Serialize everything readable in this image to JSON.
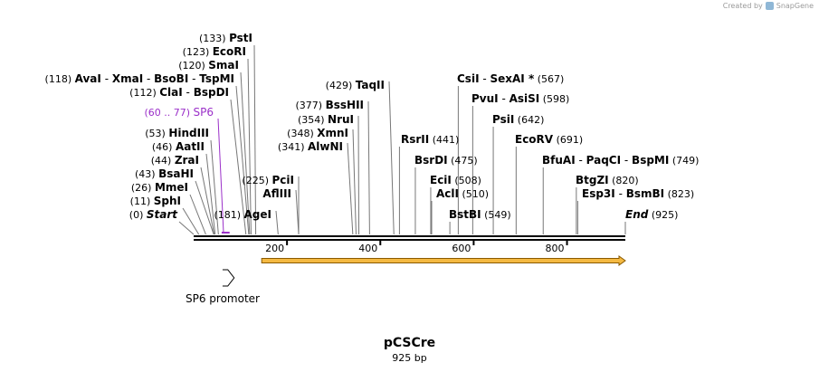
{
  "credit": {
    "text": "Created by",
    "brand": "SnapGene"
  },
  "plasmid": {
    "name": "pCSCre",
    "length": "925 bp"
  },
  "axis": {
    "start": 0,
    "end": 925,
    "ticks": [
      "200",
      "400",
      "600",
      "800"
    ]
  },
  "colors": {
    "primer": "#9b30c9",
    "feature_fill": "#f4b942",
    "feature_stroke": "#8a5a00",
    "line": "#000000"
  },
  "primer": {
    "pos": "(60 .. 77)",
    "name": "SP6",
    "start": 60,
    "end": 77
  },
  "features": [
    {
      "name": "SP6 promoter",
      "start": 60,
      "end": 79,
      "type": "promoter"
    },
    {
      "name": "",
      "start": 140,
      "end": 925,
      "type": "arrow"
    }
  ],
  "left_sites": [
    {
      "pos": "(133)",
      "names": [
        "PstI"
      ],
      "loc": 133
    },
    {
      "pos": "(123)",
      "names": [
        "EcoRI"
      ],
      "loc": 123
    },
    {
      "pos": "(120)",
      "names": [
        "SmaI"
      ],
      "loc": 120
    },
    {
      "pos": "(118)",
      "names": [
        "AvaI",
        "XmaI",
        "BsoBI",
        "TspMI"
      ],
      "loc": 118
    },
    {
      "pos": "(112)",
      "names": [
        "ClaI",
        "BspDI"
      ],
      "loc": 112
    },
    {
      "pos": "(53)",
      "names": [
        "HindIII"
      ],
      "loc": 53
    },
    {
      "pos": "(46)",
      "names": [
        "AatII"
      ],
      "loc": 46
    },
    {
      "pos": "(44)",
      "names": [
        "ZraI"
      ],
      "loc": 44
    },
    {
      "pos": "(43)",
      "names": [
        "BsaHI"
      ],
      "loc": 43
    },
    {
      "pos": "(26)",
      "names": [
        "MmeI"
      ],
      "loc": 26
    },
    {
      "pos": "(11)",
      "names": [
        "SphI"
      ],
      "loc": 11
    },
    {
      "pos": "(0)",
      "names": [
        "Start"
      ],
      "loc": 0
    }
  ],
  "mid_sites": [
    {
      "pos": "(429)",
      "names": [
        "TaqII"
      ],
      "loc": 429
    },
    {
      "pos": "(377)",
      "names": [
        "BssHII"
      ],
      "loc": 377
    },
    {
      "pos": "(354)",
      "names": [
        "NruI"
      ],
      "loc": 354
    },
    {
      "pos": "(348)",
      "names": [
        "XmnI"
      ],
      "loc": 348
    },
    {
      "pos": "(341)",
      "names": [
        "AlwNI"
      ],
      "loc": 341
    },
    {
      "pos": "(225)",
      "names": [
        "PciI"
      ],
      "loc": 225
    },
    {
      "pos": "",
      "names": [
        "AflIII"
      ],
      "loc": 225
    },
    {
      "pos": "(181)",
      "names": [
        "AgeI"
      ],
      "loc": 181
    }
  ],
  "right_sites": [
    {
      "pos": "(567)",
      "names": [
        "CsiI",
        "SexAI *"
      ],
      "loc": 567
    },
    {
      "pos": "(598)",
      "names": [
        "PvuI",
        "AsiSI"
      ],
      "loc": 598
    },
    {
      "pos": "(642)",
      "names": [
        "PsiI"
      ],
      "loc": 642
    },
    {
      "pos": "(441)",
      "names": [
        "RsrII"
      ],
      "loc": 441
    },
    {
      "pos": "(691)",
      "names": [
        "EcoRV"
      ],
      "loc": 691
    },
    {
      "pos": "(475)",
      "names": [
        "BsrDI"
      ],
      "loc": 475
    },
    {
      "pos": "(749)",
      "names": [
        "BfuAI",
        "PaqCI",
        "BspMI"
      ],
      "loc": 749
    },
    {
      "pos": "(508)",
      "names": [
        "EciI"
      ],
      "loc": 508
    },
    {
      "pos": "(820)",
      "names": [
        "BtgZI"
      ],
      "loc": 820
    },
    {
      "pos": "(510)",
      "names": [
        "AclI"
      ],
      "loc": 510
    },
    {
      "pos": "(823)",
      "names": [
        "Esp3I",
        "BsmBI"
      ],
      "loc": 823
    },
    {
      "pos": "(549)",
      "names": [
        "BstBI"
      ],
      "loc": 549
    },
    {
      "pos": "(925)",
      "names": [
        "End"
      ],
      "loc": 925
    }
  ]
}
